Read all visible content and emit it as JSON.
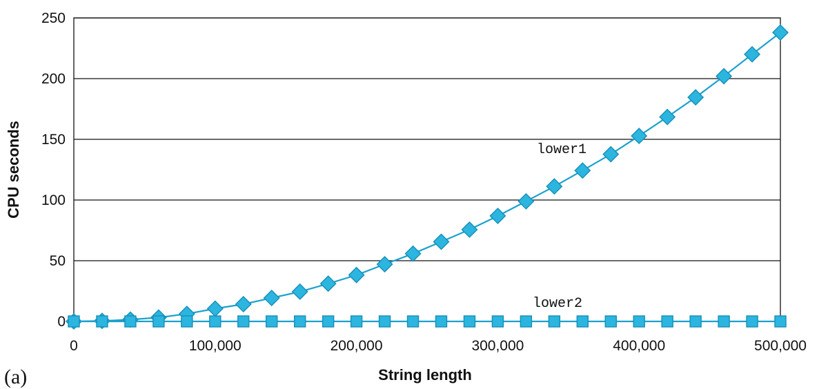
{
  "chart_data": {
    "type": "line",
    "panel_label": "(a)",
    "xlabel": "String length",
    "ylabel": "CPU seconds",
    "xlim": [
      0,
      500000
    ],
    "ylim": [
      0,
      250
    ],
    "x_ticks": [
      0,
      100000,
      200000,
      300000,
      400000,
      500000
    ],
    "x_tick_labels": [
      "0",
      "100,000",
      "200,000",
      "300,000",
      "400,000",
      "500,000"
    ],
    "y_ticks": [
      0,
      50,
      100,
      150,
      200,
      250
    ],
    "y_tick_labels": [
      "0",
      "50",
      "100",
      "150",
      "200",
      "250"
    ],
    "grid": "horizontal",
    "x": [
      0,
      20000,
      40000,
      60000,
      80000,
      100000,
      120000,
      140000,
      160000,
      180000,
      200000,
      220000,
      240000,
      260000,
      280000,
      300000,
      320000,
      340000,
      360000,
      380000,
      400000,
      420000,
      440000,
      460000,
      480000,
      500000
    ],
    "series": [
      {
        "name": "lower1",
        "marker": "diamond",
        "color": "#2bb5df",
        "values": [
          0,
          0.4,
          1.5,
          3.2,
          6.2,
          10.5,
          14.2,
          19.3,
          24.5,
          31.1,
          38.2,
          47.1,
          55.8,
          65.6,
          75.6,
          86.9,
          98.9,
          111.2,
          124.3,
          137.7,
          152.8,
          168.4,
          184.6,
          202.0,
          220.0,
          238.0
        ]
      },
      {
        "name": "lower2",
        "marker": "square",
        "color": "#2bb5df",
        "values": [
          0,
          0,
          0,
          0,
          0,
          0,
          0,
          0,
          0,
          0,
          0,
          0,
          0,
          0,
          0,
          0,
          0,
          0,
          0,
          0,
          0,
          0,
          0,
          0,
          0,
          0
        ]
      }
    ]
  }
}
